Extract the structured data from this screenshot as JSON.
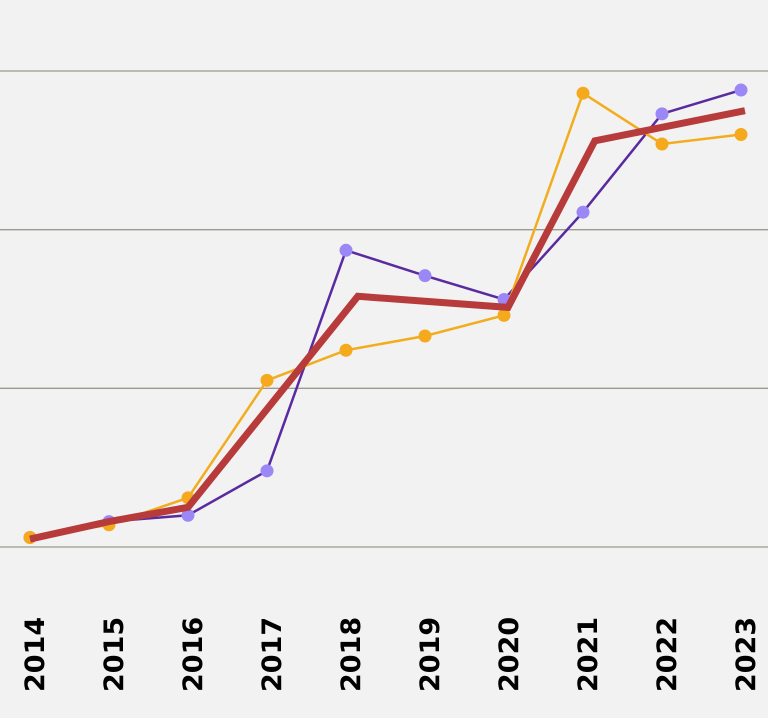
{
  "chart_data": {
    "type": "line",
    "title": "",
    "xlabel": "",
    "ylabel": "",
    "categories": [
      "2014",
      "2015",
      "2016",
      "2017",
      "2018",
      "2019",
      "2020",
      "2021",
      "2022",
      "2023"
    ],
    "ylim": [
      0,
      3
    ],
    "yticks": [
      0,
      1,
      2,
      3
    ],
    "ytick_labels_shown": false,
    "grid": "horizontal",
    "legend": "none",
    "series": [
      {
        "color": "#5a2aa0",
        "marker_color": "#9b87f5",
        "markers": true,
        "values": [
          0.06,
          0.16,
          0.2,
          0.48,
          1.87,
          1.71,
          1.56,
          2.11,
          2.73,
          2.88
        ]
      },
      {
        "color": "#f2ad1f",
        "marker_color": "#f5a91c",
        "markers": true,
        "values": [
          0.06,
          0.14,
          0.31,
          1.05,
          1.24,
          1.33,
          1.46,
          2.86,
          2.54,
          2.6
        ]
      },
      {
        "color": "#b83b3b",
        "markers": false,
        "thick": true,
        "points": [
          [
            2014,
            0.05
          ],
          [
            2015,
            0.16
          ],
          [
            2016,
            0.25
          ],
          [
            2018.15,
            1.58
          ],
          [
            2020.05,
            1.51
          ],
          [
            2021.15,
            2.56
          ],
          [
            2023.05,
            2.75
          ]
        ]
      }
    ],
    "colors": {
      "background": "#f2f2f2",
      "grid": "#9a9a90"
    }
  }
}
